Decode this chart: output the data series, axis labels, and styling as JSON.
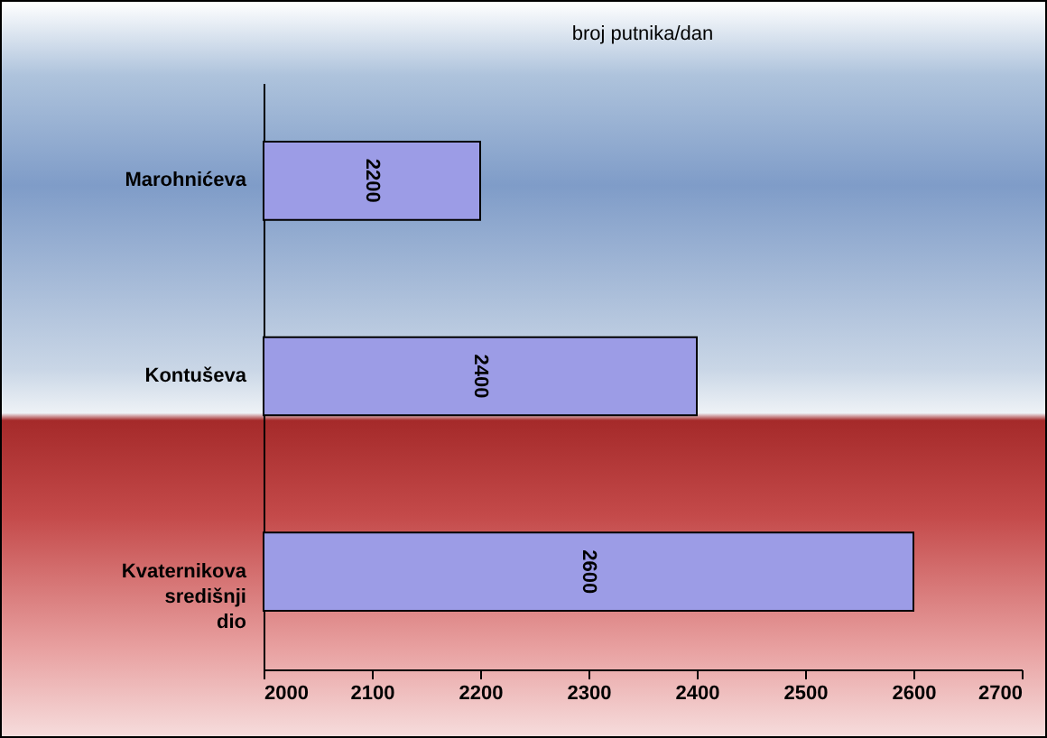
{
  "chart_data": {
    "type": "bar",
    "orientation": "horizontal",
    "title": "broj putnika/dan",
    "categories": [
      "Marohnićeva",
      "Kontuševa",
      "Kvaternikova središnji dio"
    ],
    "values": [
      2200,
      2400,
      2600
    ],
    "color": "#9c9ce6",
    "xlim": [
      2000,
      2700
    ],
    "xticks": [
      2000,
      2100,
      2200,
      2300,
      2400,
      2500,
      2600,
      2700
    ],
    "data_labels": true,
    "grid": false
  }
}
